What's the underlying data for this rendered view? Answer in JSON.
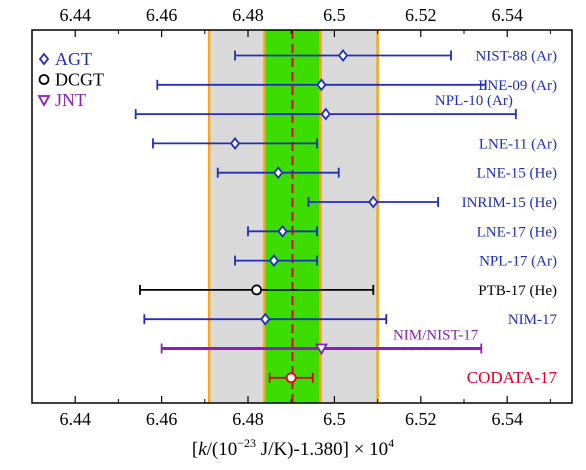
{
  "chart_data": {
    "type": "scatter",
    "title": "",
    "xlabel_parts": {
      "open": "[",
      "k": "k",
      "mid": "/(10",
      "exp": "−23",
      "unit": " J/K)-1.380] × 10",
      "exp2": "4"
    },
    "xlim": [
      6.43,
      6.555
    ],
    "x_ticks": [
      6.44,
      6.46,
      6.48,
      6.5,
      6.52,
      6.54
    ],
    "x_tick_labels": [
      "6.44",
      "6.46",
      "6.48",
      "6.5",
      "6.52",
      "6.54"
    ],
    "bands": [
      {
        "kind": "outer",
        "x0": 6.471,
        "x1": 6.51,
        "color": "#d9d9d9"
      },
      {
        "kind": "inner",
        "x0": 6.4838,
        "x1": 6.4968,
        "color": "#3ddc00"
      }
    ],
    "band_edge_color": "#f5a623",
    "reference_line": {
      "x": 6.4903,
      "color": "#e0001b"
    },
    "legend": [
      {
        "symbol": "diamond",
        "label": "AGT",
        "color": "#1f2fb8"
      },
      {
        "symbol": "circle",
        "label": "DCGT",
        "color": "#000000"
      },
      {
        "symbol": "triangle",
        "label": "JNT",
        "color": "#8a1fb8"
      }
    ],
    "points": [
      {
        "label": "NIST-88 (Ar)",
        "x": 6.502,
        "lo": 6.477,
        "hi": 6.527,
        "method": "AGT",
        "color": "#1f2fb8",
        "label_pos": "right"
      },
      {
        "label": "LNE-09 (Ar)",
        "x": 6.497,
        "lo": 6.459,
        "hi": 6.535,
        "method": "AGT",
        "color": "#1f2fb8",
        "label_pos": "right"
      },
      {
        "label": "NPL-10 (Ar)",
        "x": 6.498,
        "lo": 6.454,
        "hi": 6.542,
        "method": "AGT",
        "color": "#1f2fb8",
        "label_pos": "above"
      },
      {
        "label": "LNE-11 (Ar)",
        "x": 6.477,
        "lo": 6.458,
        "hi": 6.496,
        "method": "AGT",
        "color": "#1f2fb8",
        "label_pos": "right"
      },
      {
        "label": "LNE-15 (He)",
        "x": 6.487,
        "lo": 6.473,
        "hi": 6.501,
        "method": "AGT",
        "color": "#1f2fb8",
        "label_pos": "right"
      },
      {
        "label": "INRIM-15 (He)",
        "x": 6.509,
        "lo": 6.494,
        "hi": 6.524,
        "method": "AGT",
        "color": "#1f2fb8",
        "label_pos": "right"
      },
      {
        "label": "LNE-17 (He)",
        "x": 6.488,
        "lo": 6.48,
        "hi": 6.496,
        "method": "AGT",
        "color": "#1f2fb8",
        "label_pos": "right"
      },
      {
        "label": "NPL-17 (Ar)",
        "x": 6.486,
        "lo": 6.477,
        "hi": 6.496,
        "method": "AGT",
        "color": "#1f2fb8",
        "label_pos": "right"
      },
      {
        "label": "PTB-17 (He)",
        "x": 6.482,
        "lo": 6.455,
        "hi": 6.509,
        "method": "DCGT",
        "color": "#000000",
        "label_pos": "right"
      },
      {
        "label": "NIM-17",
        "x": 6.484,
        "lo": 6.456,
        "hi": 6.512,
        "method": "AGT",
        "color": "#1f2fb8",
        "label_pos": "right"
      },
      {
        "label": "NIM/NIST-17",
        "x": 6.497,
        "lo": 6.46,
        "hi": 6.534,
        "method": "JNT",
        "color": "#8a1fb8",
        "label_pos": "above"
      },
      {
        "label": "CODATA-17",
        "x": 6.49,
        "lo": 6.485,
        "hi": 6.495,
        "method": "CODATA",
        "color": "#e0001b",
        "label_pos": "right"
      }
    ]
  }
}
